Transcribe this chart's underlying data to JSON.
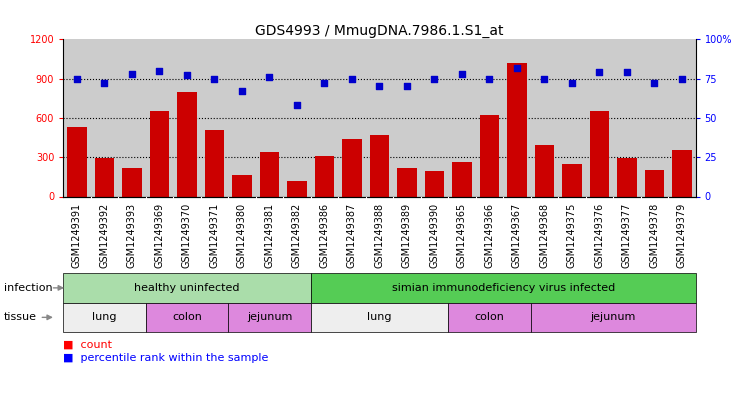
{
  "title": "GDS4993 / MmugDNA.7986.1.S1_at",
  "samples": [
    "GSM1249391",
    "GSM1249392",
    "GSM1249393",
    "GSM1249369",
    "GSM1249370",
    "GSM1249371",
    "GSM1249380",
    "GSM1249381",
    "GSM1249382",
    "GSM1249386",
    "GSM1249387",
    "GSM1249388",
    "GSM1249389",
    "GSM1249390",
    "GSM1249365",
    "GSM1249366",
    "GSM1249367",
    "GSM1249368",
    "GSM1249375",
    "GSM1249376",
    "GSM1249377",
    "GSM1249378",
    "GSM1249379"
  ],
  "counts": [
    530,
    295,
    215,
    650,
    800,
    510,
    165,
    340,
    120,
    310,
    440,
    470,
    220,
    195,
    260,
    620,
    1020,
    390,
    245,
    650,
    295,
    205,
    355
  ],
  "percentiles": [
    75,
    72,
    78,
    80,
    77,
    75,
    67,
    76,
    58,
    72,
    75,
    70,
    70,
    75,
    78,
    75,
    82,
    75,
    72,
    79,
    79,
    72,
    75
  ],
  "bar_color": "#cc0000",
  "dot_color": "#0000cc",
  "ylim_left": [
    0,
    1200
  ],
  "ylim_right": [
    0,
    100
  ],
  "yticks_left": [
    0,
    300,
    600,
    900,
    1200
  ],
  "yticks_right": [
    0,
    25,
    50,
    75,
    100
  ],
  "infection_groups": [
    {
      "label": "healthy uninfected",
      "start": 0,
      "end": 9,
      "color": "#aaddaa"
    },
    {
      "label": "simian immunodeficiency virus infected",
      "start": 9,
      "end": 23,
      "color": "#55cc55"
    }
  ],
  "tissue_groups": [
    {
      "label": "lung",
      "start": 0,
      "end": 3,
      "color": "#eeeeee"
    },
    {
      "label": "colon",
      "start": 3,
      "end": 6,
      "color": "#dd88dd"
    },
    {
      "label": "jejunum",
      "start": 6,
      "end": 9,
      "color": "#dd88dd"
    },
    {
      "label": "lung",
      "start": 9,
      "end": 14,
      "color": "#eeeeee"
    },
    {
      "label": "colon",
      "start": 14,
      "end": 17,
      "color": "#dd88dd"
    },
    {
      "label": "jejunum",
      "start": 17,
      "end": 23,
      "color": "#dd88dd"
    }
  ],
  "plot_bg_color": "#cccccc",
  "xtick_bg_color": "#d0d0d0",
  "legend_count_label": "count",
  "legend_pct_label": "percentile rank within the sample",
  "infection_label": "infection",
  "tissue_label": "tissue",
  "gridline_color": "#000000",
  "title_fontsize": 10,
  "tick_fontsize": 7,
  "label_fontsize": 8,
  "panel_fontsize": 8
}
